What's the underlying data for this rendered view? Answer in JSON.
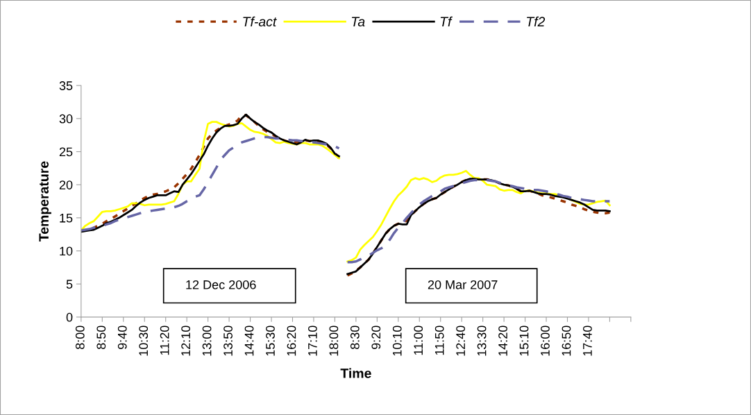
{
  "chart_data": {
    "type": "line",
    "xlabel": "Time",
    "ylabel": "Temperature",
    "categories": [
      "8:00",
      null,
      null,
      null,
      null,
      "8:50",
      null,
      null,
      null,
      null,
      "9:40",
      null,
      null,
      null,
      null,
      "10:30",
      null,
      null,
      null,
      null,
      "11:20",
      null,
      null,
      null,
      null,
      "12:10",
      null,
      null,
      null,
      null,
      "13:00",
      null,
      null,
      null,
      null,
      "13:50",
      null,
      null,
      null,
      null,
      "14:40",
      null,
      null,
      null,
      null,
      "15:30",
      null,
      null,
      null,
      null,
      "16:20",
      null,
      null,
      null,
      null,
      "17:10",
      null,
      null,
      null,
      null,
      "18:00",
      null,
      null,
      null,
      null,
      "8:30",
      null,
      null,
      null,
      null,
      "9:20",
      null,
      null,
      null,
      null,
      "10:10",
      null,
      null,
      null,
      null,
      "11:00",
      null,
      null,
      null,
      null,
      "11:50",
      null,
      null,
      null,
      null,
      "12:40",
      null,
      null,
      null,
      null,
      "13:30",
      null,
      null,
      null,
      null,
      "14:20",
      null,
      null,
      null,
      null,
      "15:10",
      null,
      null,
      null,
      null,
      "16:00",
      null,
      null,
      null,
      null,
      "16:50",
      null,
      null,
      null,
      null,
      "17:40",
      null,
      null,
      null,
      null,
      null,
      null,
      null,
      null,
      null
    ],
    "series": [
      {
        "name": "Tf-act",
        "color": "#993300",
        "line_style": "dotted",
        "values": [
          13.0,
          13.1,
          13.3,
          13.5,
          13.8,
          14.1,
          14.5,
          14.8,
          15.2,
          15.6,
          16.0,
          16.4,
          16.8,
          17.2,
          17.6,
          18.0,
          18.3,
          18.5,
          18.6,
          18.8,
          19.0,
          19.3,
          19.6,
          20.2,
          20.9,
          21.6,
          22.4,
          23.4,
          24.5,
          25.7,
          27.0,
          27.7,
          28.2,
          28.6,
          28.9,
          29.1,
          29.3,
          29.7,
          30.5,
          30.5,
          30.0,
          29.5,
          28.9,
          28.4,
          28.0,
          27.7,
          27.3,
          27.0,
          26.7,
          26.5,
          26.4,
          26.4,
          26.6,
          26.7,
          26.6,
          26.6,
          26.6,
          26.4,
          26.1,
          25.5,
          24.8,
          24.0,
          null,
          6.3,
          6.6,
          7.0,
          7.5,
          8.1,
          8.7,
          9.6,
          10.6,
          11.6,
          12.6,
          13.3,
          13.8,
          14.1,
          14.2,
          14.6,
          15.4,
          16.0,
          16.6,
          17.1,
          17.5,
          17.8,
          18.0,
          18.5,
          18.9,
          19.3,
          19.7,
          20.0,
          20.4,
          20.7,
          20.9,
          20.9,
          20.8,
          20.8,
          20.8,
          20.7,
          20.5,
          20.2,
          20.0,
          19.9,
          19.7,
          19.4,
          19.0,
          19.0,
          19.1,
          18.9,
          18.7,
          18.4,
          18.3,
          18.1,
          17.9,
          17.7,
          17.5,
          17.3,
          17.0,
          16.8,
          16.6,
          16.3,
          16.1,
          15.9,
          15.8,
          15.7,
          15.7,
          15.8,
          null,
          null,
          null,
          null
        ]
      },
      {
        "name": "Ta",
        "color": "#ffff00",
        "line_style": "solid",
        "values": [
          13.1,
          13.8,
          14.2,
          14.5,
          15.2,
          15.9,
          16.0,
          16.0,
          16.1,
          16.3,
          16.5,
          16.7,
          17.2,
          17.2,
          17.1,
          16.9,
          17.0,
          17.0,
          17.0,
          17.0,
          17.1,
          17.3,
          17.5,
          18.6,
          20.0,
          20.5,
          20.5,
          21.5,
          22.4,
          26.5,
          29.2,
          29.5,
          29.5,
          29.2,
          29.0,
          28.8,
          28.9,
          29.2,
          29.3,
          28.8,
          28.3,
          28.0,
          27.9,
          27.7,
          27.4,
          26.9,
          26.4,
          26.3,
          26.5,
          26.3,
          26.2,
          26.1,
          26.3,
          26.3,
          26.1,
          26.1,
          26.1,
          25.9,
          25.5,
          25.0,
          24.5,
          24.0,
          null,
          8.4,
          8.6,
          9.0,
          10.2,
          10.9,
          11.5,
          12.1,
          13.0,
          14.0,
          15.2,
          16.4,
          17.5,
          18.4,
          19.0,
          19.7,
          20.7,
          21.0,
          20.8,
          21.0,
          20.8,
          20.4,
          20.6,
          21.1,
          21.4,
          21.5,
          21.5,
          21.6,
          21.8,
          22.1,
          21.5,
          21.0,
          21.0,
          20.6,
          20.0,
          19.9,
          19.8,
          19.3,
          19.1,
          19.2,
          19.2,
          18.9,
          18.7,
          19.1,
          19.1,
          19.0,
          18.8,
          18.7,
          18.7,
          18.6,
          18.6,
          18.4,
          18.3,
          18.0,
          17.7,
          17.4,
          17.1,
          17.0,
          17.0,
          17.2,
          17.4,
          17.5,
          17.6,
          16.9,
          null,
          null,
          null,
          null
        ]
      },
      {
        "name": "Tf",
        "color": "#000000",
        "line_style": "solid",
        "values": [
          12.9,
          13.0,
          13.1,
          13.2,
          13.5,
          13.8,
          14.2,
          14.4,
          14.7,
          15.0,
          15.4,
          15.8,
          16.2,
          16.8,
          17.3,
          17.7,
          18.0,
          18.2,
          18.4,
          18.4,
          18.4,
          18.7,
          19.0,
          18.9,
          20.0,
          20.8,
          21.6,
          22.6,
          23.6,
          24.6,
          25.9,
          27.0,
          27.9,
          28.5,
          28.9,
          28.9,
          29.0,
          29.2,
          30.0,
          30.6,
          30.0,
          29.5,
          29.1,
          28.6,
          28.2,
          27.9,
          27.4,
          27.0,
          26.7,
          26.5,
          26.3,
          26.1,
          26.4,
          26.8,
          26.6,
          26.7,
          26.7,
          26.5,
          26.2,
          25.6,
          24.7,
          24.3,
          null,
          6.5,
          6.7,
          6.9,
          7.5,
          8.1,
          8.7,
          9.6,
          10.6,
          11.6,
          12.6,
          13.3,
          13.8,
          14.1,
          14.0,
          14.0,
          15.4,
          16.0,
          16.6,
          17.1,
          17.5,
          17.8,
          18.0,
          18.5,
          18.9,
          19.3,
          19.7,
          20.0,
          20.4,
          20.7,
          20.9,
          20.9,
          20.8,
          20.8,
          20.8,
          20.7,
          20.5,
          20.2,
          20.0,
          19.9,
          19.7,
          19.4,
          19.0,
          19.0,
          19.1,
          18.9,
          18.7,
          18.6,
          18.6,
          18.5,
          18.3,
          18.2,
          18.1,
          17.9,
          17.7,
          17.5,
          17.3,
          17.0,
          16.6,
          16.2,
          16.1,
          16.1,
          16.1,
          16.0,
          null,
          null,
          null,
          null
        ]
      },
      {
        "name": "Tf2",
        "color": "#6666a6",
        "line_style": "dashed",
        "values": [
          13.1,
          13.2,
          13.3,
          13.5,
          13.6,
          13.8,
          14.0,
          14.2,
          14.5,
          14.7,
          14.9,
          15.1,
          15.3,
          15.5,
          15.7,
          15.9,
          16.0,
          16.1,
          16.2,
          16.3,
          16.4,
          16.5,
          16.6,
          16.8,
          17.1,
          17.5,
          17.8,
          18.2,
          18.4,
          19.3,
          20.4,
          21.5,
          22.6,
          23.8,
          24.5,
          25.2,
          25.6,
          26.0,
          26.4,
          26.6,
          26.8,
          27.0,
          27.1,
          27.2,
          27.2,
          27.1,
          27.0,
          27.0,
          26.9,
          26.8,
          26.7,
          26.7,
          26.6,
          26.6,
          26.5,
          26.4,
          26.3,
          26.2,
          26.1,
          26.0,
          25.8,
          25.5,
          null,
          8.3,
          8.3,
          8.4,
          8.7,
          9.0,
          9.3,
          9.7,
          10.1,
          10.4,
          10.8,
          11.7,
          12.7,
          13.5,
          14.2,
          15.0,
          15.7,
          16.4,
          17.0,
          17.5,
          17.9,
          18.3,
          18.6,
          19.0,
          19.4,
          19.6,
          19.8,
          20.0,
          20.2,
          20.4,
          20.6,
          20.7,
          20.7,
          20.7,
          20.7,
          20.6,
          20.5,
          20.3,
          20.1,
          19.9,
          19.8,
          19.6,
          19.5,
          19.4,
          19.3,
          19.2,
          19.2,
          19.1,
          19.0,
          18.8,
          18.7,
          18.5,
          18.3,
          18.2,
          18.0,
          17.9,
          17.8,
          17.7,
          17.6,
          17.5,
          17.5,
          17.5,
          17.5,
          17.5,
          null,
          null,
          null,
          null
        ]
      }
    ],
    "ylim": [
      0,
      35
    ],
    "yticks": [
      0,
      5,
      10,
      15,
      20,
      25,
      30,
      35
    ],
    "annotations": [
      "12 Dec 2006",
      "20 Mar 2007"
    ],
    "grid": false,
    "legend": "top",
    "marker": "none"
  }
}
